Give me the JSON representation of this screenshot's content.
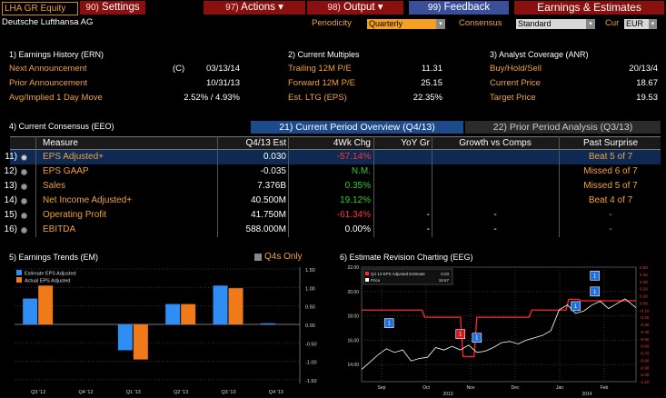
{
  "header": {
    "ticker": "LHA GR Equity",
    "buttons": [
      {
        "num": "90)",
        "label": "Settings"
      },
      {
        "num": "97)",
        "label": "Actions"
      },
      {
        "num": "98)",
        "label": "Output"
      },
      {
        "num": "99)",
        "label": "Feedback"
      }
    ],
    "page_title": "Earnings & Estimates"
  },
  "company": "Deutsche Lufthansa AG",
  "controls": {
    "periodicity_label": "Periodicity",
    "periodicity_value": "Quarterly",
    "consensus_label": "Consensus",
    "consensus_value": "Standard",
    "cur_label": "Cur",
    "cur_value": "EUR"
  },
  "earnings_history": {
    "title": "1) Earnings History (ERN)",
    "rows": [
      {
        "label": "Next Announcement",
        "flag": "(C)",
        "value": "03/13/14"
      },
      {
        "label": "Prior Announcement",
        "flag": "",
        "value": "10/31/13"
      },
      {
        "label": "Avg/Implied 1 Day Move",
        "flag": "",
        "value": "2.52% / 4.93%"
      }
    ]
  },
  "current_multiples": {
    "title": "2) Current Multiples",
    "rows": [
      {
        "label": "Trailing 12M P/E",
        "value": "11.31"
      },
      {
        "label": "Forward 12M P/E",
        "value": "25.15"
      },
      {
        "label": "Est. LTG (EPS)",
        "value": "22.35%"
      }
    ]
  },
  "analyst_coverage": {
    "title": "3) Analyst Coverage (ANR)",
    "rows": [
      {
        "label": "Buy/Hold/Sell",
        "value": "20/13/4"
      },
      {
        "label": "Current Price",
        "value": "18.67"
      },
      {
        "label": "Target Price",
        "value": "19.53"
      }
    ]
  },
  "consensus": {
    "title": "4) Current Consensus (EEO)",
    "tab_current": "21) Current Period Overview (Q4/13)",
    "tab_prior": "22) Prior Period Analysis (Q3/13)",
    "columns": [
      "Measure",
      "Q4/13 Est",
      "4Wk Chg",
      "YoY Gr",
      "Growth vs Comps",
      "Past Surprise"
    ],
    "rows": [
      {
        "n": "11)",
        "measure": "EPS Adjusted+",
        "est": "0.030",
        "chg": "-57.14%",
        "chg_color": "#ff3333",
        "yoy": "",
        "comps": "",
        "surprise": "Beat 5 of 7"
      },
      {
        "n": "12)",
        "measure": "EPS GAAP",
        "est": "-0.035",
        "chg": "N.M.",
        "chg_color": "#33cc33",
        "yoy": "",
        "comps": "",
        "surprise": "Missed 6 of 7"
      },
      {
        "n": "13)",
        "measure": "Sales",
        "est": "7.376B",
        "chg": "0.35%",
        "chg_color": "#33cc33",
        "yoy": "",
        "comps": "",
        "surprise": "Missed 5 of 7"
      },
      {
        "n": "14)",
        "measure": "Net Income Adjusted+",
        "est": "40.500M",
        "chg": "19.12%",
        "chg_color": "#33cc33",
        "yoy": "",
        "comps": "",
        "surprise": "Beat 4 of 7"
      },
      {
        "n": "15)",
        "measure": "Operating Profit",
        "est": "41.750M",
        "chg": "-61.34%",
        "chg_color": "#ff3333",
        "yoy": "-",
        "comps": "-",
        "surprise": "-"
      },
      {
        "n": "16)",
        "measure": "EBITDA",
        "est": "588.000M",
        "chg": "0.00%",
        "chg_color": "#ffffff",
        "yoy": "-",
        "comps": "-",
        "surprise": "-"
      }
    ]
  },
  "earnings_trends": {
    "title": "5) Earnings Trends (EM)",
    "q4s_only": "Q4s Only",
    "chart_data": {
      "type": "bar",
      "categories": [
        "Q3 '12",
        "Q4 '12",
        "Q1 '13",
        "Q2 '13",
        "Q3 '13",
        "Q4 '13"
      ],
      "x_tick_labels": [
        "Q3 '12",
        "Q4 '12",
        "Q1 '13",
        "Q2 '13",
        "Q3 '13",
        "Q4 '13"
      ],
      "series": [
        {
          "name": "Estimate EPS Adjusted",
          "color": "#2f8ef5",
          "values": [
            0.7,
            0.0,
            -0.7,
            0.55,
            1.05,
            0.03
          ]
        },
        {
          "name": "Actual EPS Adjusted",
          "color": "#f07a1a",
          "values": [
            1.05,
            0.0,
            -0.95,
            0.55,
            0.98,
            null
          ]
        }
      ],
      "ylim": [
        -1.6,
        1.55
      ],
      "y_ticks": [
        "1.50",
        "1.00",
        "0.50",
        "0.00",
        "-0.50",
        "-1.00",
        "-1.50"
      ],
      "y_tick_values": [
        1.5,
        1.0,
        0.5,
        0.0,
        -0.5,
        -1.0,
        -1.5
      ],
      "legend": "top-left"
    }
  },
  "revision_chart": {
    "title": "6) Estimate Revision Charting (EEG)",
    "legend": [
      {
        "name": "Q4 13 EPS Adjusted Estimate",
        "value": "0.03",
        "color": "#ff2a2a"
      },
      {
        "name": "Price",
        "value": "18.67",
        "color": "#ffffff"
      }
    ],
    "chart_data": {
      "type": "line",
      "x_tick_labels": [
        "Sep",
        "Oct",
        "Nov",
        "Dec",
        "Jan",
        "Feb"
      ],
      "year_labels": [
        "2013",
        "2014"
      ],
      "left_y_ticks": [
        "22.00",
        "20.00",
        "18.00",
        "16.00",
        "14.00"
      ],
      "left_y_values": [
        22,
        20,
        18,
        16,
        14
      ],
      "right_y_ticks": [
        "0.50",
        "0.40",
        "0.30",
        "0.20",
        "0.10",
        "0.00",
        "-0.10",
        "-0.20",
        "-0.30",
        "-0.40",
        "-0.50",
        "-0.60",
        "-0.70",
        "-0.80",
        "-0.90",
        "-1.00",
        "-1.10"
      ],
      "right_y_values": [
        0.5,
        0.4,
        0.3,
        0.2,
        0.1,
        0.0,
        -0.1,
        -0.2,
        -0.3,
        -0.4,
        -0.5,
        -0.6,
        -0.7,
        -0.8,
        -0.9,
        -1.0,
        -1.1
      ],
      "left_ylim": [
        12.6,
        22.0
      ],
      "right_ylim": [
        -1.1,
        0.5
      ],
      "series": [
        {
          "name": "Q4 13 EPS Adjusted Estimate",
          "axis": "right",
          "color": "#ff2a2a",
          "x": [
            0.0,
            0.22,
            0.23,
            0.36,
            0.37,
            0.41,
            0.42,
            0.61,
            0.62,
            0.745,
            0.755,
            0.79,
            0.8,
            1.0
          ],
          "values": [
            -0.1,
            -0.1,
            -0.2,
            -0.2,
            -0.75,
            -0.75,
            -0.2,
            -0.2,
            -0.1,
            -0.1,
            0.05,
            0.05,
            0.03,
            0.03
          ]
        },
        {
          "name": "Price",
          "axis": "left",
          "color": "#ffffff",
          "x": [
            0.0,
            0.03,
            0.06,
            0.09,
            0.12,
            0.15,
            0.18,
            0.21,
            0.24,
            0.27,
            0.3,
            0.33,
            0.36,
            0.39,
            0.42,
            0.45,
            0.48,
            0.51,
            0.54,
            0.57,
            0.6,
            0.63,
            0.66,
            0.69,
            0.72,
            0.75,
            0.78,
            0.81,
            0.84,
            0.87,
            0.9,
            0.93,
            0.96,
            1.0
          ],
          "values": [
            13.6,
            14.2,
            14.8,
            15.3,
            15.0,
            15.2,
            14.3,
            14.5,
            14.6,
            15.4,
            15.2,
            15.5,
            15.2,
            15.6,
            15.0,
            15.1,
            15.4,
            15.8,
            15.9,
            15.7,
            16.0,
            16.2,
            16.4,
            16.8,
            18.5,
            18.9,
            18.2,
            18.4,
            18.9,
            19.2,
            18.6,
            19.0,
            19.4,
            18.67
          ]
        }
      ],
      "markers": [
        {
          "label": "1",
          "x": 0.1,
          "v": 17.4,
          "color": "#1f6fe0"
        },
        {
          "label": "1",
          "x": 0.36,
          "v": 16.5,
          "color": "#d01a1a"
        },
        {
          "label": "1",
          "x": 0.42,
          "v": 16.2,
          "color": "#1f6fe0"
        },
        {
          "label": "1",
          "x": 0.78,
          "v": 18.8,
          "color": "#1f6fe0"
        },
        {
          "label": "1",
          "x": 0.85,
          "v": 20.0,
          "color": "#1f6fe0"
        },
        {
          "label": "1",
          "x": 0.85,
          "v": 21.3,
          "color": "#1f6fe0"
        }
      ]
    }
  }
}
